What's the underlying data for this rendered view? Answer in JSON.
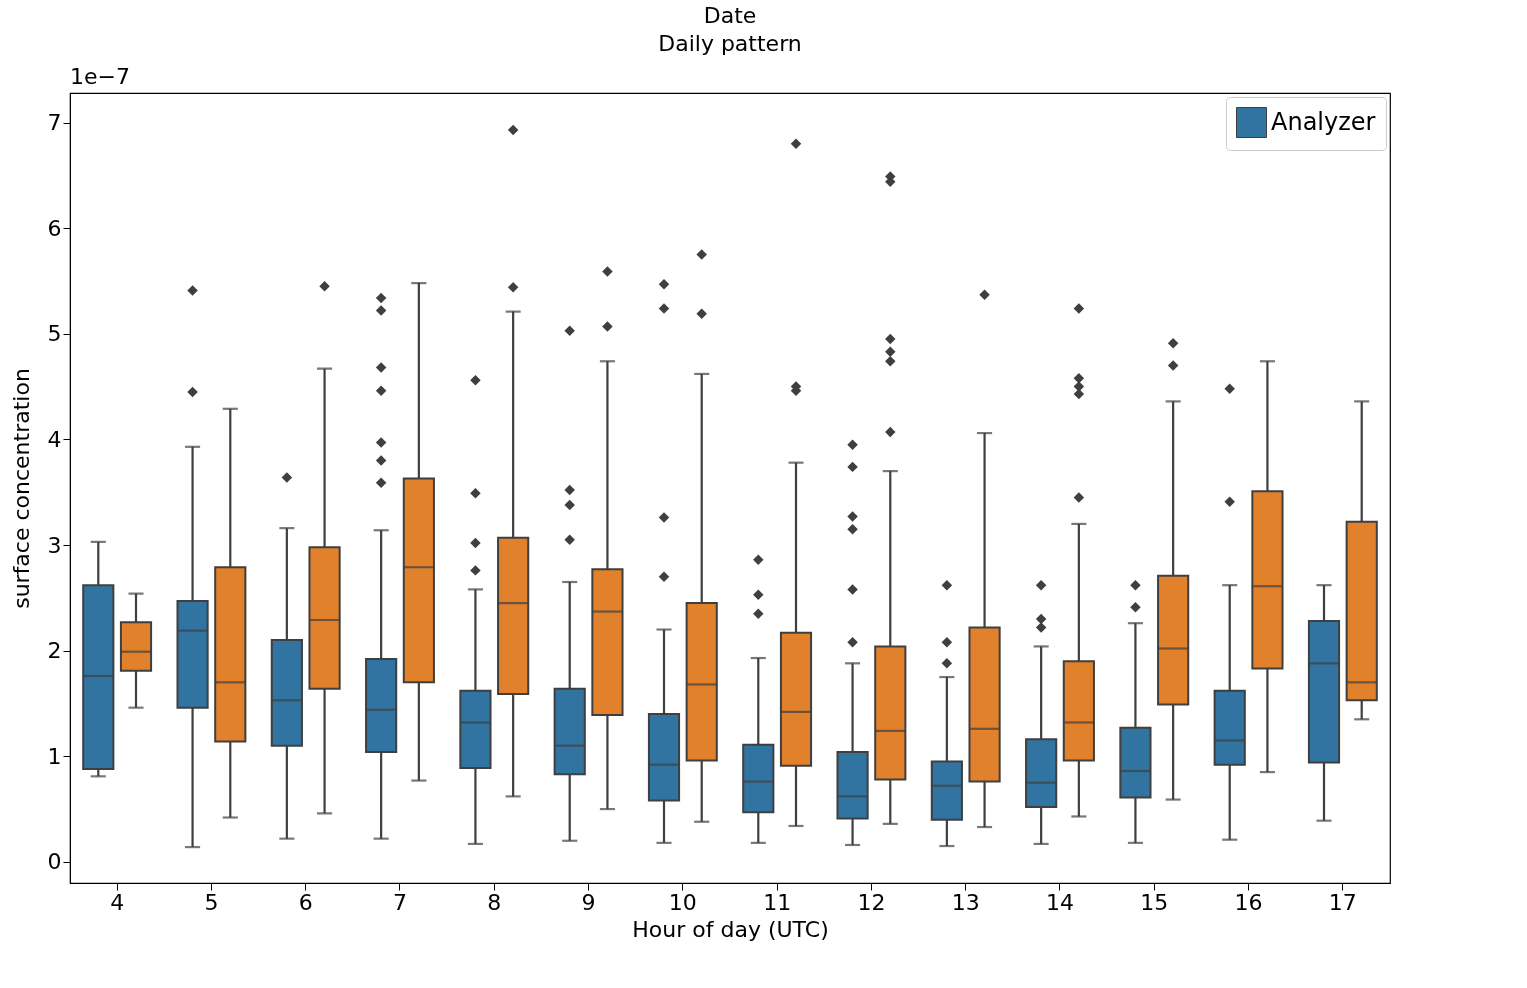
{
  "chart_data": {
    "type": "box",
    "title": "Date",
    "subtitle": "Daily pattern",
    "xlabel": "Hour of day (UTC)",
    "ylabel": "surface concentration",
    "annotations": [
      "1e−7"
    ],
    "categories": [
      "4",
      "5",
      "6",
      "7",
      "8",
      "9",
      "10",
      "11",
      "12",
      "13",
      "14",
      "15",
      "16",
      "17"
    ],
    "ylim": [
      -0.2,
      7.28
    ],
    "yticks": [
      0,
      1,
      2,
      3,
      4,
      5,
      6,
      7
    ],
    "legend": "top right",
    "marker": "diamond",
    "grid": false,
    "series": [
      {
        "name": "Analyzer",
        "color": "#3274a1",
        "boxes": [
          {
            "low": 0.81,
            "q1": 0.88,
            "median": 1.76,
            "q3": 2.62,
            "high": 3.03
          },
          {
            "low": 0.14,
            "q1": 1.46,
            "median": 2.19,
            "q3": 2.47,
            "high": 3.93,
            "outliers": [
              4.45,
              5.41
            ]
          },
          {
            "low": 0.22,
            "q1": 1.1,
            "median": 1.53,
            "q3": 2.1,
            "high": 3.16,
            "outliers": [
              3.64
            ]
          },
          {
            "low": 0.22,
            "q1": 1.04,
            "median": 1.44,
            "q3": 1.92,
            "high": 3.14,
            "outliers": [
              3.59,
              3.8,
              3.97,
              4.46,
              4.68,
              5.22,
              5.34
            ]
          },
          {
            "low": 0.17,
            "q1": 0.89,
            "median": 1.32,
            "q3": 1.62,
            "high": 2.58,
            "outliers": [
              2.76,
              3.02,
              3.49,
              4.56
            ]
          },
          {
            "low": 0.2,
            "q1": 0.83,
            "median": 1.1,
            "q3": 1.64,
            "high": 2.65,
            "outliers": [
              3.05,
              3.38,
              3.52,
              5.03
            ]
          },
          {
            "low": 0.18,
            "q1": 0.58,
            "median": 0.92,
            "q3": 1.4,
            "high": 2.2,
            "outliers": [
              2.7,
              3.26,
              5.24,
              5.47
            ]
          },
          {
            "low": 0.18,
            "q1": 0.47,
            "median": 0.76,
            "q3": 1.11,
            "high": 1.93,
            "outliers": [
              2.35,
              2.53,
              2.86
            ]
          },
          {
            "low": 0.16,
            "q1": 0.41,
            "median": 0.62,
            "q3": 1.04,
            "high": 1.88,
            "outliers": [
              2.08,
              2.58,
              3.15,
              3.27,
              3.74,
              3.95
            ]
          },
          {
            "low": 0.15,
            "q1": 0.4,
            "median": 0.72,
            "q3": 0.95,
            "high": 1.75,
            "outliers": [
              1.88,
              2.08,
              2.62
            ]
          },
          {
            "low": 0.17,
            "q1": 0.52,
            "median": 0.75,
            "q3": 1.16,
            "high": 2.04,
            "outliers": [
              2.22,
              2.3,
              2.62
            ]
          },
          {
            "low": 0.18,
            "q1": 0.61,
            "median": 0.86,
            "q3": 1.27,
            "high": 2.26,
            "outliers": [
              2.41,
              2.62
            ]
          },
          {
            "low": 0.21,
            "q1": 0.92,
            "median": 1.15,
            "q3": 1.62,
            "high": 2.62,
            "outliers": [
              3.41,
              4.48
            ]
          },
          {
            "low": 0.39,
            "q1": 0.94,
            "median": 1.88,
            "q3": 2.28,
            "high": 2.62
          }
        ]
      },
      {
        "color": "#e1812c",
        "boxes": [
          {
            "low": 1.46,
            "q1": 1.81,
            "median": 1.99,
            "q3": 2.27,
            "high": 2.54
          },
          {
            "low": 0.42,
            "q1": 1.14,
            "median": 1.7,
            "q3": 2.79,
            "high": 4.29
          },
          {
            "low": 0.46,
            "q1": 1.64,
            "median": 2.29,
            "q3": 2.98,
            "high": 4.67,
            "outliers": [
              5.45
            ]
          },
          {
            "low": 0.77,
            "q1": 1.7,
            "median": 2.79,
            "q3": 3.63,
            "high": 5.48
          },
          {
            "low": 0.62,
            "q1": 1.59,
            "median": 2.45,
            "q3": 3.07,
            "high": 5.21,
            "outliers": [
              5.44,
              6.93
            ]
          },
          {
            "low": 0.5,
            "q1": 1.39,
            "median": 2.37,
            "q3": 2.77,
            "high": 4.74,
            "outliers": [
              5.07,
              5.59
            ]
          },
          {
            "low": 0.38,
            "q1": 0.96,
            "median": 1.68,
            "q3": 2.45,
            "high": 4.62,
            "outliers": [
              5.19,
              5.75
            ]
          },
          {
            "low": 0.34,
            "q1": 0.91,
            "median": 1.42,
            "q3": 2.17,
            "high": 3.78,
            "outliers": [
              4.46,
              4.5,
              6.8
            ]
          },
          {
            "low": 0.36,
            "q1": 0.78,
            "median": 1.24,
            "q3": 2.04,
            "high": 3.7,
            "outliers": [
              4.07,
              4.74,
              4.83,
              4.95,
              6.44,
              6.49
            ]
          },
          {
            "low": 0.33,
            "q1": 0.76,
            "median": 1.26,
            "q3": 2.22,
            "high": 4.06,
            "outliers": [
              5.37
            ]
          },
          {
            "low": 0.43,
            "q1": 0.96,
            "median": 1.32,
            "q3": 1.9,
            "high": 3.2,
            "outliers": [
              3.45,
              4.43,
              4.5,
              4.58,
              5.24
            ]
          },
          {
            "low": 0.59,
            "q1": 1.49,
            "median": 2.02,
            "q3": 2.71,
            "high": 4.36,
            "outliers": [
              4.7,
              4.91
            ]
          },
          {
            "low": 0.85,
            "q1": 1.83,
            "median": 2.61,
            "q3": 3.51,
            "high": 4.74
          },
          {
            "low": 1.35,
            "q1": 1.53,
            "median": 1.7,
            "q3": 3.22,
            "high": 4.36
          }
        ]
      }
    ]
  }
}
